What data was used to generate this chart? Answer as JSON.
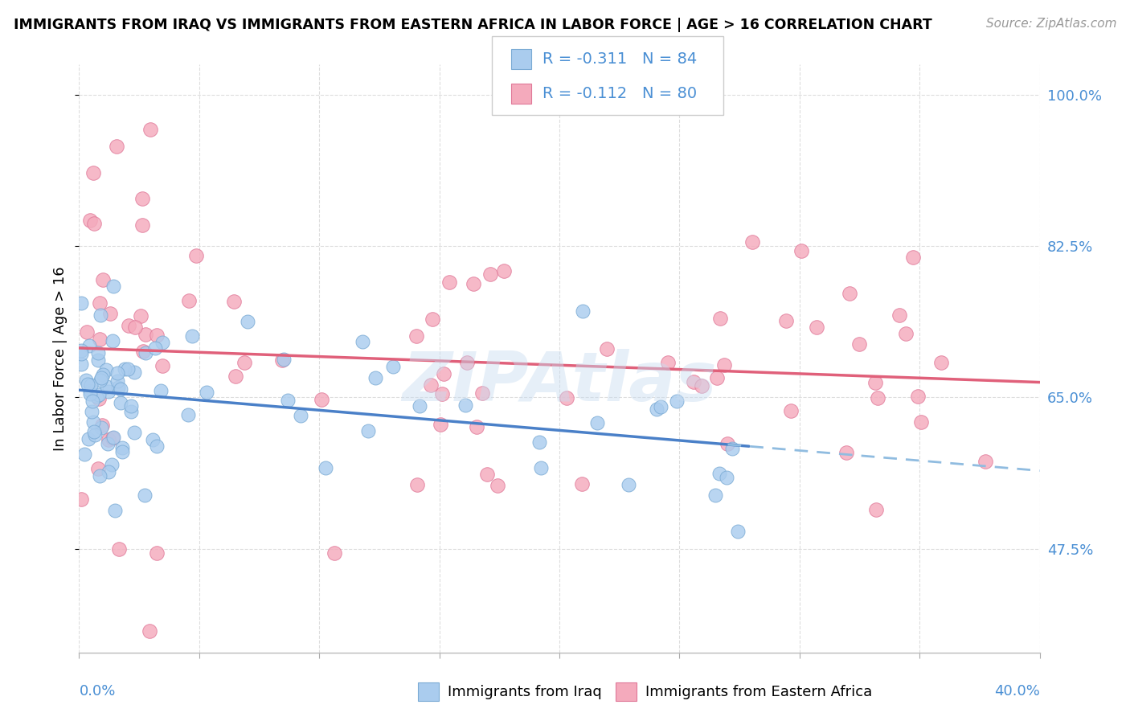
{
  "title": "IMMIGRANTS FROM IRAQ VS IMMIGRANTS FROM EASTERN AFRICA IN LABOR FORCE | AGE > 16 CORRELATION CHART",
  "source": "Source: ZipAtlas.com",
  "ylabel": "In Labor Force | Age > 16",
  "xmin": 0.0,
  "xmax": 0.4,
  "ymin": 0.355,
  "ymax": 1.035,
  "iraq_color": "#aaccee",
  "iraq_edge_color": "#7aaad4",
  "eastern_africa_color": "#f4aabc",
  "eastern_africa_edge_color": "#e07898",
  "iraq_R": "-0.311",
  "iraq_N": "84",
  "ea_R": "-0.112",
  "ea_N": "80",
  "watermark": "ZIPAtlas",
  "watermark_color": "#c8dcf0",
  "background_color": "#ffffff",
  "gridcolor": "#dddddd",
  "blue_text": "#4a8fd4",
  "line_blue": "#4a80c8",
  "line_blue_dash": "#90bce0",
  "line_pink": "#e0607a"
}
